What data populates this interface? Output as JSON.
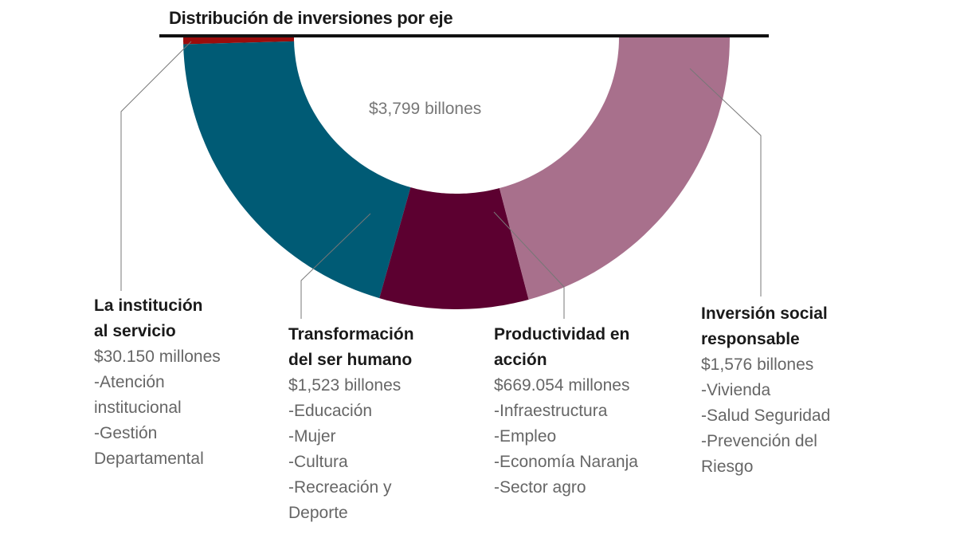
{
  "chart_data": {
    "type": "pie",
    "subtype": "half-donut",
    "title": "Distribución de inversiones por eje",
    "center_label": "$3,799 billones",
    "unit": "billones (COP)",
    "segments": [
      {
        "name": "La institución\nal servicio",
        "value": 0.03015,
        "amount_label": "$30.150 millones",
        "color": "#9a0c0c",
        "items": [
          "-Atención institucional",
          "-Gestión Departamental"
        ]
      },
      {
        "name": "Transformación\ndel ser humano",
        "value": 1.523,
        "amount_label": "$1,523 billones",
        "color": "#005b75",
        "items": [
          "-Educación",
          "-Mujer",
          "-Cultura",
          "-Recreación y Deporte"
        ]
      },
      {
        "name": "Productividad en\nacción",
        "value": 0.669054,
        "amount_label": "$669.054 millones",
        "color": "#5c0030",
        "items": [
          "-Infraestructura",
          "-Empleo",
          "-Economía Naranja",
          "-Sector agro"
        ]
      },
      {
        "name": "Inversión social\nresponsable",
        "value": 1.576,
        "amount_label": "$1,576 billones",
        "color": "#a8708c",
        "items": [
          "-Vivienda",
          "-Salud Seguridad",
          "-Prevención del Riesgo"
        ]
      }
    ]
  }
}
